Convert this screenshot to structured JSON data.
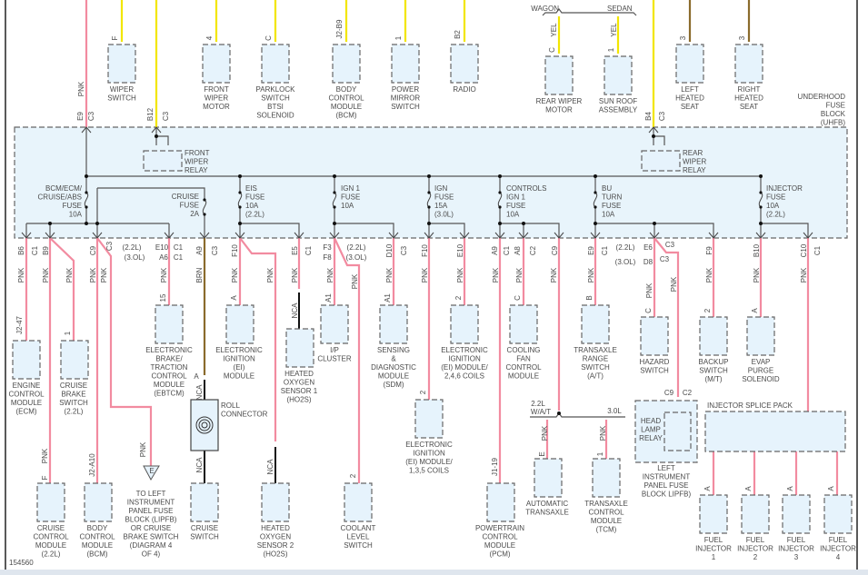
{
  "diagram_id": "154560",
  "harness_options": {
    "wagon": "WAGON",
    "sedan": "SEDAN",
    "engine_22_wat": [
      "2.2L",
      "W/A/T"
    ],
    "engine_30": "3.0L"
  },
  "lipfb_ref": "E",
  "components": [
    {
      "label": [
        "WIPER",
        "SWITCH"
      ]
    },
    {
      "label": [
        "FRONT",
        "WIPER",
        "MOTOR"
      ]
    },
    {
      "label": [
        "PARKLOCK",
        "SWITCH",
        "BTSI",
        "SOLENOID"
      ]
    },
    {
      "label": [
        "BODY",
        "CONTROL",
        "MODULE",
        "(BCM)"
      ]
    },
    {
      "label": [
        "POWER",
        "MIRROR",
        "SWITCH"
      ]
    },
    {
      "label": [
        "RADIO"
      ]
    },
    {
      "label": [
        "REAR WIPER",
        "MOTOR"
      ]
    },
    {
      "label": [
        "SUN ROOF",
        "ASSEMBLY"
      ]
    },
    {
      "label": [
        "LEFT",
        "HEATED",
        "SEAT"
      ]
    },
    {
      "label": [
        "RIGHT",
        "HEATED",
        "SEAT"
      ]
    },
    {
      "label": [
        "ENGINE",
        "CONTROL",
        "MODULE",
        "(ECM)"
      ]
    },
    {
      "label": [
        "CRUISE",
        "BRAKE",
        "SWITCH",
        "(2.2L)"
      ]
    },
    {
      "label": [
        "ELECTRONIC",
        "BRAKE/",
        "TRACTION",
        "CONTROL",
        "MODULE",
        "(EBTCM)"
      ]
    },
    {
      "label": [
        "ELECTRONIC",
        "IGNITION",
        "(EI)",
        "MODULE"
      ]
    },
    {
      "label": [
        "HEATED",
        "OXYGEN",
        "SENSOR 1",
        "(HO2S)"
      ]
    },
    {
      "label": [
        "I/P",
        "CLUSTER"
      ]
    },
    {
      "label": [
        "SENSING",
        "&",
        "DIAGNOSTIC",
        "MODULE",
        "(SDM)"
      ]
    },
    {
      "label": [
        "ELECTRONIC",
        "IGNITION",
        "(EI) MODULE/",
        "2,4,6 COILS"
      ]
    },
    {
      "label": [
        "COOLING",
        "FAN",
        "CONTROL",
        "MODULE"
      ]
    },
    {
      "label": [
        "ELECTRONIC",
        "IGNITION",
        "(EI) MODULE/",
        "1,3,5 COILS"
      ]
    },
    {
      "label": [
        "TRANSAXLE",
        "RANGE",
        "SWITCH",
        "(A/T)"
      ]
    },
    {
      "label": [
        "HAZARD",
        "SWITCH"
      ]
    },
    {
      "label": [
        "BACKUP",
        "SWITCH",
        "(M/T)"
      ]
    },
    {
      "label": [
        "EVAP",
        "PURGE",
        "SOLENOID"
      ]
    },
    {
      "label": [
        "CRUISE",
        "CONTROL",
        "MODULE",
        "(2.2L)"
      ]
    },
    {
      "label": [
        "BODY",
        "CONTROL",
        "MODULE",
        "(BCM)"
      ]
    },
    {
      "label": [
        "CRUISE",
        "SWITCH"
      ]
    },
    {
      "label": [
        "HEATED",
        "OXYGEN",
        "SENSOR 2",
        "(HO2S)"
      ]
    },
    {
      "label": [
        "COOLANT",
        "LEVEL",
        "SWITCH"
      ]
    },
    {
      "label": [
        "POWERTRAIN",
        "CONTROL",
        "MODULE",
        "(PCM)"
      ]
    },
    {
      "label": [
        "AUTOMATIC",
        "TRANSAXLE"
      ]
    },
    {
      "label": [
        "TRANSAXLE",
        "CONTROL",
        "MODULE",
        "(TCM)"
      ]
    },
    {
      "label": [
        "FUEL",
        "INJECTOR",
        "1"
      ]
    },
    {
      "label": [
        "FUEL",
        "INJECTOR",
        "2"
      ]
    },
    {
      "label": [
        "FUEL",
        "INJECTOR",
        "3"
      ]
    },
    {
      "label": [
        "FUEL",
        "INJECTOR",
        "4"
      ]
    },
    {
      "label": [
        "ROLL",
        "CONNECTOR"
      ]
    },
    {
      "label": [
        "LEFT",
        "INSTRUMENT",
        "PANEL FUSE",
        "BLOCK LIPFB)"
      ]
    },
    {
      "label": [
        "HEAD",
        "LAMP",
        "RELAY"
      ]
    },
    {
      "label": [
        "INJECTOR SPLICE PACK"
      ]
    },
    {
      "label": [
        "FRONT",
        "WIPER",
        "RELAY"
      ]
    },
    {
      "label": [
        "REAR",
        "WIPER",
        "RELAY"
      ]
    },
    {
      "label": [
        "UNDERHOOD",
        "FUSE",
        "BLOCK",
        "(UHFB)"
      ]
    },
    {
      "label": [
        "TO LEFT",
        "INSTRUMENT",
        "PANEL FUSE",
        "BLOCK (LIPFB)",
        "OR CRUISE",
        "BRAKE SWITCH",
        "(DIAGRAM 4",
        "OF 4)"
      ]
    }
  ],
  "fuses": [
    {
      "label": [
        "BCM/ECM/",
        "CRUISE/ABS",
        "FUSE",
        "10A"
      ]
    },
    {
      "label": [
        "CRUISE",
        "FUSE",
        "2A"
      ]
    },
    {
      "label": [
        "EIS",
        "FUSE",
        "10A",
        "(2.2L)"
      ]
    },
    {
      "label": [
        "IGN 1",
        "FUSE",
        "10A"
      ]
    },
    {
      "label": [
        "IGN",
        "FUSE",
        "15A",
        "(3.0L)"
      ]
    },
    {
      "label": [
        "CONTROLS",
        "IGN 1",
        "FUSE",
        "10A"
      ]
    },
    {
      "label": [
        "BU",
        "TURN",
        "FUSE",
        "10A"
      ]
    },
    {
      "label": [
        "INJECTOR",
        "FUSE",
        "10A",
        "(2.2L)"
      ]
    }
  ],
  "connector_labels": [
    "E9",
    "C3",
    "B12",
    "C3",
    "B4",
    "C3",
    "B6",
    "C1",
    "B9",
    "C9",
    "C3",
    "(2.2L)",
    "(3.OL)",
    "E10",
    "A6",
    "C1",
    "C1",
    "A9",
    "C3",
    "F10",
    "E5",
    "C1",
    "F3",
    "F8",
    "(2.2L)",
    "(3.OL)",
    "D10",
    "C3",
    "F10",
    "E10",
    "A9",
    "C1",
    "A8",
    "C2",
    "C9",
    "E9",
    "C1",
    "(2.2L)",
    "E6",
    "C3",
    "(3.OL)",
    "D8",
    "C3",
    "F9",
    "B10",
    "C10",
    "C1",
    "C9",
    "C2"
  ],
  "pins": [
    "F",
    "4",
    "C",
    "J2-B9",
    "1",
    "B2",
    "C",
    "1",
    "3",
    "3",
    "J2-47",
    "1",
    "15",
    "A",
    "A",
    "A1",
    "A1",
    "2",
    "C",
    "2",
    "B",
    "C",
    "2",
    "A",
    "F",
    "J2-A10",
    "2",
    "J1-19",
    "E",
    "1",
    "A",
    "A",
    "A",
    "A"
  ],
  "wire_labels": [
    "PNK",
    "YEL",
    "YEL",
    "PNK",
    "PNK",
    "PNK",
    "PNK",
    "PNK",
    "PNK",
    "BRN",
    "PNK",
    "PNK",
    "PNK",
    "PNK",
    "PNK",
    "PNK",
    "PNK",
    "PNK",
    "PNK",
    "PNK",
    "PNK",
    "PNK",
    "PNK",
    "PNK",
    "PNK",
    "PNK",
    "PNK",
    "NCA",
    "NCA",
    "NCA",
    "NCA",
    "PNK",
    "PNK",
    "PNK",
    "PNK"
  ],
  "wire_colors": {
    "pink": "#f28ba0",
    "yellow": "#f2e600",
    "brown": "#8a6b2c",
    "black": "#111111",
    "internal": "#555555"
  },
  "colors": {
    "component_fill": "#e6f3fc",
    "block_fill": "#e8f4fb",
    "outline": "#666666"
  }
}
